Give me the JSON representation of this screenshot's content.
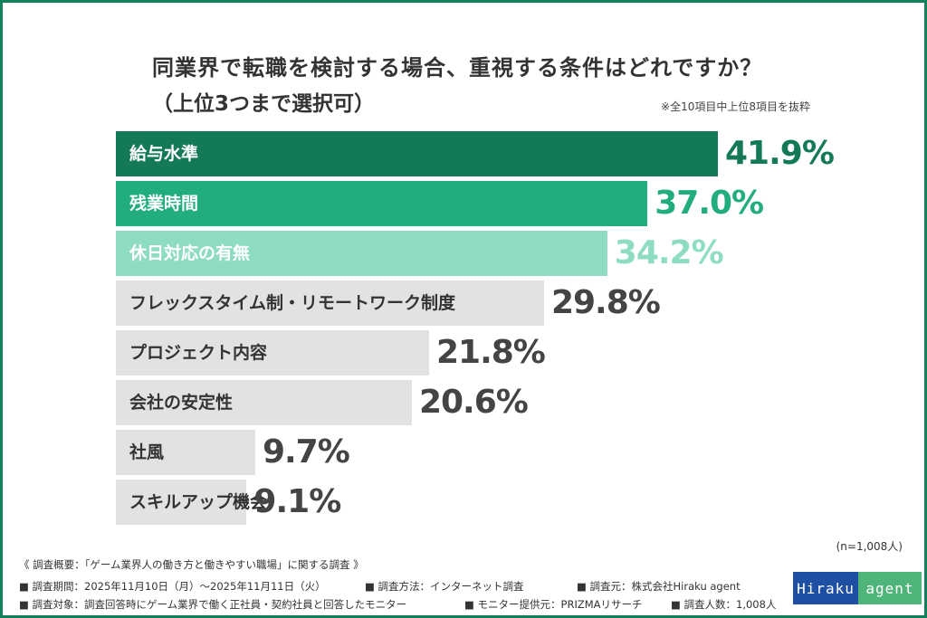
{
  "chart_data": {
    "type": "bar",
    "orientation": "horizontal",
    "title": "同業界で転職を検討する場合、重視する条件はどれですか？",
    "subtitle": "（上位3つまで選択可）",
    "note": "※全10項目中上位8項目を抜粋",
    "categories": [
      "給与水準",
      "残業時間",
      "休日対応の有無",
      "フレックスタイム制・リモートワーク制度",
      "プロジェクト内容",
      "会社の安定性",
      "社風",
      "スキルアップ機会"
    ],
    "values": [
      41.9,
      37.0,
      34.2,
      29.8,
      21.8,
      20.6,
      9.7,
      9.1
    ],
    "value_labels": [
      "41.9%",
      "37.0%",
      "34.2%",
      "29.8%",
      "21.8%",
      "20.6%",
      "9.7%",
      "9.1%"
    ],
    "unit": "%",
    "bar_colors": [
      "#147a55",
      "#22ad80",
      "#8edcc1",
      "#e2e2e2",
      "#e2e2e2",
      "#e2e2e2",
      "#e2e2e2",
      "#e2e2e2"
    ],
    "label_colors": [
      "#ffffff",
      "#ffffff",
      "#ffffff",
      "#333333",
      "#333333",
      "#333333",
      "#333333",
      "#333333"
    ],
    "value_colors": [
      "#147a55",
      "#22ad80",
      "#8edcc1",
      "#444444",
      "#444444",
      "#444444",
      "#444444",
      "#444444"
    ],
    "grid": false,
    "sample_size": "(n=1,008人)"
  },
  "footer": {
    "survey_title": "《 調査概要：「ゲーム業界人の働き方と働きやすい職場」に関する調査 》",
    "period": "■ 調査期間：2025年11月10日（月）～2025年11月11日（火）",
    "method": "■ 調査方法：インターネット調査",
    "source": "■ 調査元：株式会社Hiraku agent",
    "target": "■ 調査対象：調査回答時にゲーム業界で働く正社員・契約社員と回答したモニター",
    "provider": "■ モニター提供元：PRIZMAリサーチ",
    "count": "■ 調査人数：1,008人"
  },
  "logo": {
    "part1": "Hiraku",
    "part2": "agent",
    "colors": [
      "#1f4fa3",
      "#4fb47a"
    ]
  },
  "frame_color": "#12805a"
}
